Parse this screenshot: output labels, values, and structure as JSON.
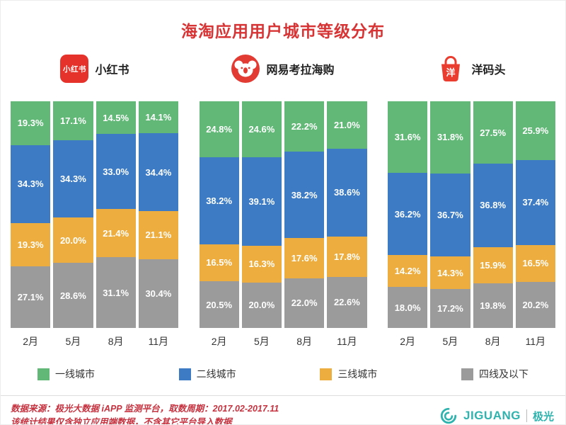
{
  "page": {
    "title": "海淘应用用户城市等级分布"
  },
  "apps": [
    {
      "label": "小红书",
      "icon": "xiaohongshu-app-icon",
      "icon_text": "小红书",
      "icon_color": "#e5332c"
    },
    {
      "label": "网易考拉海购",
      "icon": "kaola-app-icon",
      "icon_color": "#e23b33"
    },
    {
      "label": "洋码头",
      "icon": "yangmatou-app-icon",
      "icon_text": "洋",
      "icon_color": "#ea3d2f"
    }
  ],
  "chart_data": [
    {
      "type": "bar",
      "stacked": true,
      "unit": "%",
      "title": "小红书",
      "categories": [
        "2月",
        "5月",
        "8月",
        "11月"
      ],
      "ylim": [
        0,
        100
      ],
      "series": [
        {
          "name": "一线城市",
          "color": "#61b877",
          "values": [
            19.3,
            17.1,
            14.5,
            14.1
          ]
        },
        {
          "name": "二线城市",
          "color": "#3d7cc4",
          "values": [
            34.3,
            34.3,
            33.0,
            34.4
          ]
        },
        {
          "name": "三线城市",
          "color": "#eead3f",
          "values": [
            19.3,
            20.0,
            21.4,
            21.1
          ]
        },
        {
          "name": "四线及以下",
          "color": "#9b9b9b",
          "values": [
            27.1,
            28.6,
            31.1,
            30.4
          ]
        }
      ]
    },
    {
      "type": "bar",
      "stacked": true,
      "unit": "%",
      "title": "网易考拉海购",
      "categories": [
        "2月",
        "5月",
        "8月",
        "11月"
      ],
      "ylim": [
        0,
        100
      ],
      "series": [
        {
          "name": "一线城市",
          "color": "#61b877",
          "values": [
            24.8,
            24.6,
            22.2,
            21.0
          ]
        },
        {
          "name": "二线城市",
          "color": "#3d7cc4",
          "values": [
            38.2,
            39.1,
            38.2,
            38.6
          ]
        },
        {
          "name": "三线城市",
          "color": "#eead3f",
          "values": [
            16.5,
            16.3,
            17.6,
            17.8
          ]
        },
        {
          "name": "四线及以下",
          "color": "#9b9b9b",
          "values": [
            20.5,
            20.0,
            22.0,
            22.6
          ]
        }
      ]
    },
    {
      "type": "bar",
      "stacked": true,
      "unit": "%",
      "title": "洋码头",
      "categories": [
        "2月",
        "5月",
        "8月",
        "11月"
      ],
      "ylim": [
        0,
        100
      ],
      "series": [
        {
          "name": "一线城市",
          "color": "#61b877",
          "values": [
            31.6,
            31.8,
            27.5,
            25.9
          ]
        },
        {
          "name": "二线城市",
          "color": "#3d7cc4",
          "values": [
            36.2,
            36.7,
            36.8,
            37.4
          ]
        },
        {
          "name": "三线城市",
          "color": "#eead3f",
          "values": [
            14.2,
            14.3,
            15.9,
            16.5
          ]
        },
        {
          "name": "四线及以下",
          "color": "#9b9b9b",
          "values": [
            18.0,
            17.2,
            19.8,
            20.2
          ]
        }
      ]
    }
  ],
  "legend": {
    "items": [
      {
        "label": "一线城市",
        "color": "#61b877"
      },
      {
        "label": "二线城市",
        "color": "#3d7cc4"
      },
      {
        "label": "三线城市",
        "color": "#eead3f"
      },
      {
        "label": "四线及以下",
        "color": "#9b9b9b"
      }
    ]
  },
  "footer": {
    "source_line1": "数据来源：极光大数据 iAPP 监测平台，取数周期：2017.02-2017.11",
    "source_line2": "该统计结果仅含独立应用端数据，不含其它平台导入数据",
    "logo_text": "JIGUANG",
    "logo_cn": "极光",
    "logo_color": "#2fb3ae"
  }
}
